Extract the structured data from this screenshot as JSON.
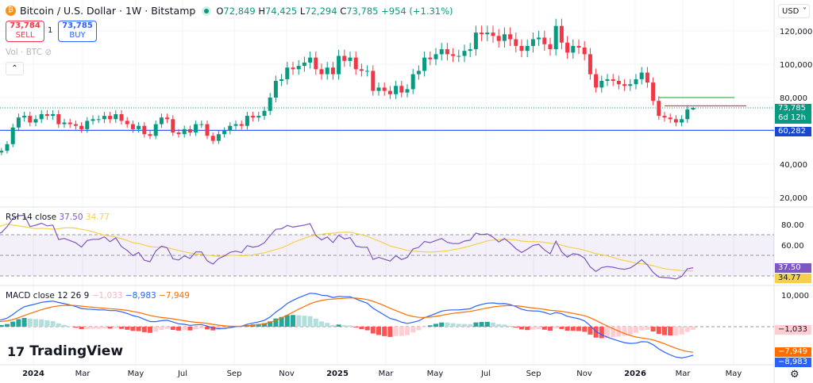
{
  "header": {
    "title": "Bitcoin / U.S. Dollar · 1W · Bitstamp",
    "coin_icon": "bitcoin-icon",
    "open_label": "O",
    "open": "72,849",
    "high_label": "H",
    "high": "74,425",
    "low_label": "L",
    "low": "72,294",
    "close_label": "C",
    "close": "73,785",
    "change": "+954 (+1.31%)"
  },
  "trade": {
    "sell_price": "73,784",
    "sell_label": "SELL",
    "quantity": "1",
    "buy_price": "73,785",
    "buy_label": "BUY"
  },
  "volume_label": "Vol · BTC",
  "currency": "USD",
  "price_tags": {
    "last": "73,785",
    "countdown": "6d 12h",
    "line": "60,282"
  },
  "rsi": {
    "label": "RSI 14 close",
    "value": "37.50",
    "ma_value": "34.77",
    "tick_labels": [
      "80.00",
      "60.00"
    ]
  },
  "macd": {
    "label": "MACD close 12 26 9",
    "hist": "−1,033",
    "macd": "−8,983",
    "signal": "−7,949",
    "tick_labels": [
      "10,000"
    ]
  },
  "brand": "TradingView",
  "colors": {
    "up": "#089981",
    "down": "#F23645",
    "rsi": "#7E57C2",
    "rsi_ma": "#F5D14A",
    "macd": "#2962FF",
    "signal": "#FF6D00",
    "hline": "#3D5AFE"
  },
  "chart_data": {
    "type": "candlestick",
    "interval": "1W",
    "y_ticks": [
      120000,
      100000,
      80000,
      40000,
      20000
    ],
    "y_tick_labels": [
      "120,000",
      "100,000",
      "80,000",
      "40,000",
      "20,000"
    ],
    "x_tick_labels": [
      "2024",
      "Mar",
      "May",
      "Jul",
      "Sep",
      "Nov",
      "2025",
      "Mar",
      "May",
      "Jul",
      "Sep",
      "Nov",
      "2026",
      "Mar",
      "May"
    ],
    "weekly_close": [
      37000,
      37500,
      38000,
      39500,
      42000,
      43000,
      42500,
      43000,
      42000,
      44000,
      46500,
      42000,
      41500,
      43000,
      47000,
      48000,
      52000,
      62000,
      68000,
      69000,
      65000,
      67000,
      70000,
      69000,
      70000,
      64000,
      65000,
      64000,
      63000,
      61000,
      66000,
      67000,
      67000,
      69000,
      67000,
      70000,
      66000,
      64000,
      61000,
      63000,
      58000,
      57000,
      64000,
      68000,
      67000,
      59000,
      58000,
      61000,
      59000,
      64000,
      64000,
      57000,
      54000,
      58000,
      60000,
      63000,
      64000,
      63000,
      69000,
      68000,
      69000,
      72000,
      80000,
      90000,
      91000,
      98000,
      97000,
      99000,
      101000,
      104000,
      97000,
      94000,
      98000,
      94000,
      105000,
      102000,
      104000,
      97000,
      96000,
      96000,
      84000,
      86000,
      84000,
      82000,
      87000,
      83000,
      85000,
      94000,
      96000,
      104000,
      103000,
      106000,
      109000,
      106000,
      105000,
      105000,
      108000,
      109000,
      119000,
      118000,
      119000,
      117000,
      114000,
      118000,
      115000,
      111000,
      108000,
      111000,
      115000,
      116000,
      112000,
      109000,
      123000,
      113000,
      107000,
      111000,
      110000,
      106000,
      94000,
      86000,
      90000,
      91000,
      90000,
      88000,
      87000,
      88000,
      91000,
      95000,
      89000,
      78000,
      69000,
      68000,
      67000,
      65000,
      67000,
      72849,
      73785
    ],
    "last_high": 74425,
    "last_low": 72294,
    "horizontal_line": 60282,
    "drawn_levels": [
      80000,
      75000
    ]
  }
}
